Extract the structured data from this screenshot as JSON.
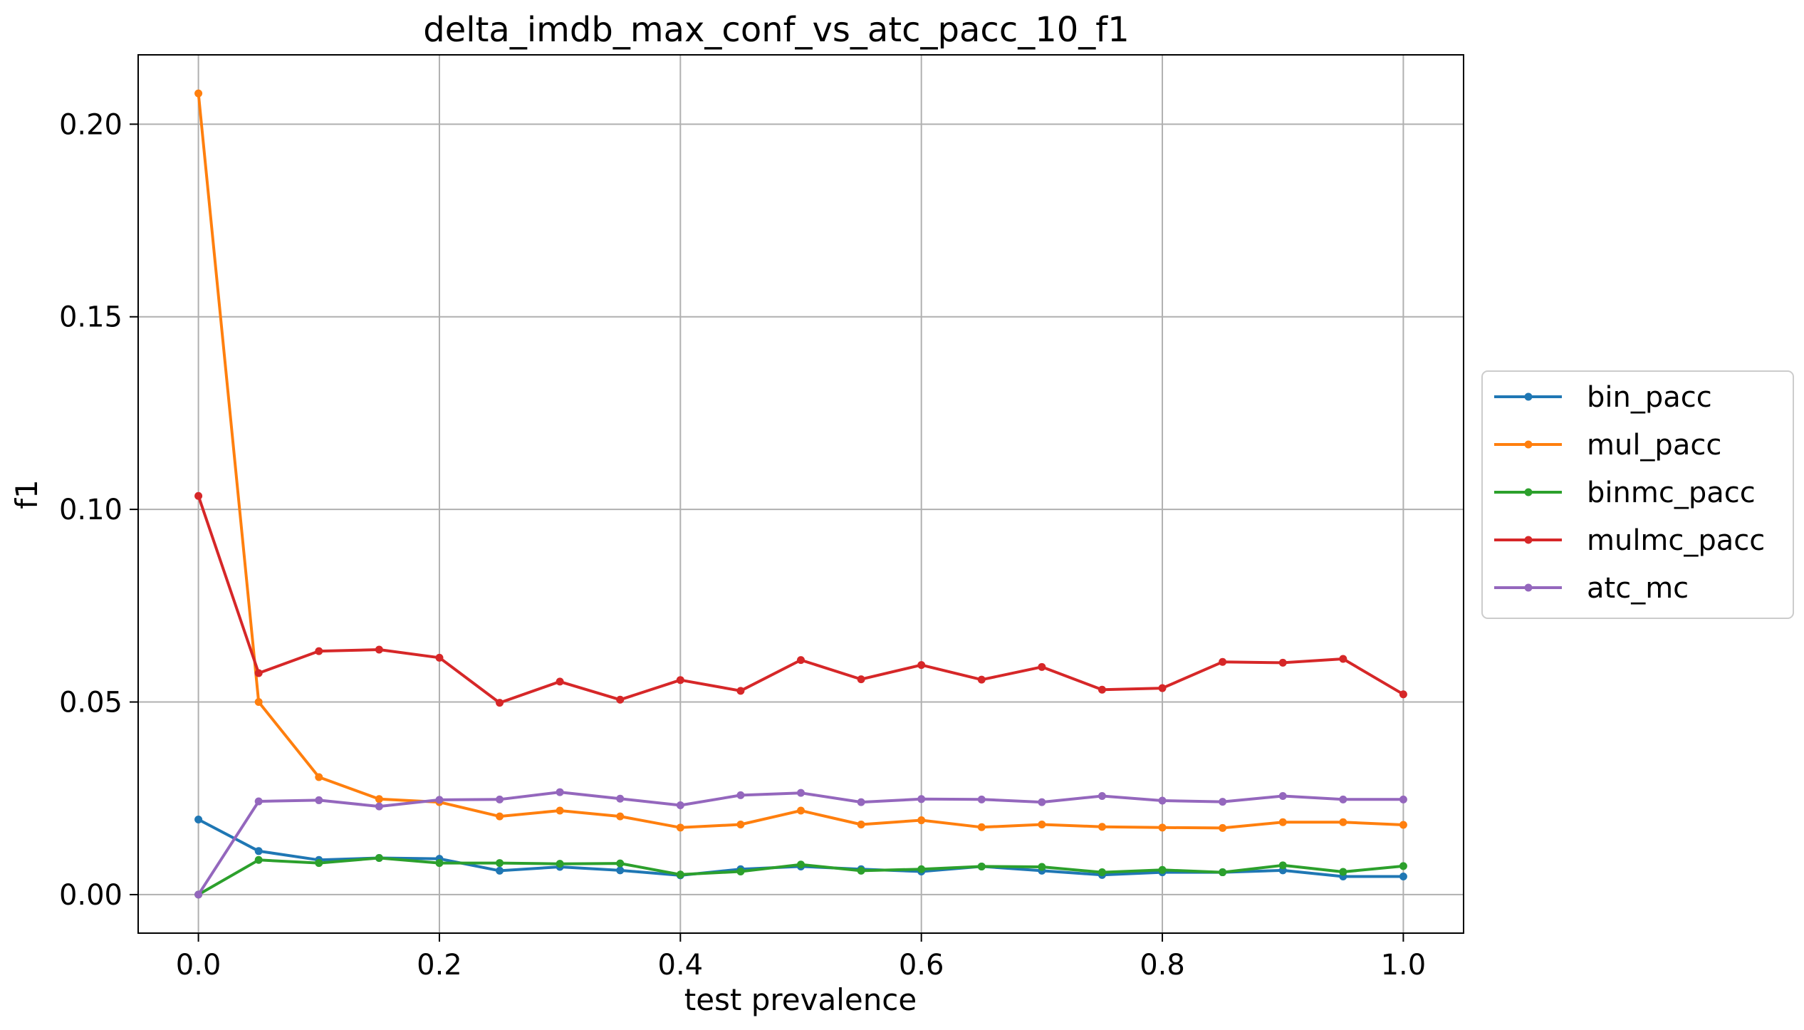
{
  "chart_data": {
    "type": "line",
    "title": "delta_imdb_max_conf_vs_atc_pacc_10_f1",
    "xlabel": "test prevalence",
    "ylabel": "f1",
    "xlim": [
      -0.05,
      1.05
    ],
    "ylim": [
      -0.01,
      0.218
    ],
    "xticks": [
      0.0,
      0.2,
      0.4,
      0.6,
      0.8,
      1.0
    ],
    "xtick_labels": [
      "0.0",
      "0.2",
      "0.4",
      "0.6",
      "0.8",
      "1.0"
    ],
    "yticks": [
      0.0,
      0.05,
      0.1,
      0.15,
      0.2
    ],
    "ytick_labels": [
      "0.00",
      "0.05",
      "0.10",
      "0.15",
      "0.20"
    ],
    "grid": true,
    "legend_position": "outside-right",
    "x": [
      0.0,
      0.05,
      0.1,
      0.15,
      0.2,
      0.25,
      0.3,
      0.35,
      0.4,
      0.45,
      0.5,
      0.55,
      0.6,
      0.65,
      0.7,
      0.75,
      0.8,
      0.85,
      0.9,
      0.95,
      1.0
    ],
    "series": [
      {
        "name": "bin_pacc",
        "color": "#1f77b4",
        "values": [
          0.0195,
          0.0113,
          0.009,
          0.0095,
          0.0093,
          0.0062,
          0.0072,
          0.0063,
          0.005,
          0.0066,
          0.0073,
          0.0066,
          0.006,
          0.0073,
          0.0062,
          0.0051,
          0.0058,
          0.0058,
          0.0063,
          0.0047,
          0.0047
        ]
      },
      {
        "name": "mul_pacc",
        "color": "#ff7f0e",
        "values": [
          0.208,
          0.05,
          0.0305,
          0.0248,
          0.024,
          0.0203,
          0.0218,
          0.0203,
          0.0174,
          0.0182,
          0.0218,
          0.0182,
          0.0193,
          0.0175,
          0.0182,
          0.0176,
          0.0174,
          0.0173,
          0.0188,
          0.0188,
          0.0181
        ]
      },
      {
        "name": "binmc_pacc",
        "color": "#2ca02c",
        "values": [
          0.0,
          0.009,
          0.0082,
          0.0095,
          0.0082,
          0.0082,
          0.008,
          0.0081,
          0.0052,
          0.006,
          0.0078,
          0.0062,
          0.0066,
          0.0073,
          0.0072,
          0.0058,
          0.0064,
          0.0058,
          0.0076,
          0.0059,
          0.0074
        ]
      },
      {
        "name": "mulmc_pacc",
        "color": "#d62728",
        "values": [
          0.1035,
          0.0575,
          0.0632,
          0.0636,
          0.0615,
          0.0498,
          0.0553,
          0.0506,
          0.0557,
          0.0529,
          0.0609,
          0.0559,
          0.0596,
          0.0558,
          0.0591,
          0.0532,
          0.0536,
          0.0604,
          0.0602,
          0.0612,
          0.052
        ]
      },
      {
        "name": "atc_mc",
        "color": "#9467bd",
        "values": [
          0.0,
          0.0242,
          0.0245,
          0.0229,
          0.0246,
          0.0247,
          0.0266,
          0.0249,
          0.0232,
          0.0258,
          0.0264,
          0.024,
          0.0248,
          0.0247,
          0.024,
          0.0256,
          0.0244,
          0.0241,
          0.0256,
          0.0247,
          0.0247
        ]
      }
    ]
  }
}
